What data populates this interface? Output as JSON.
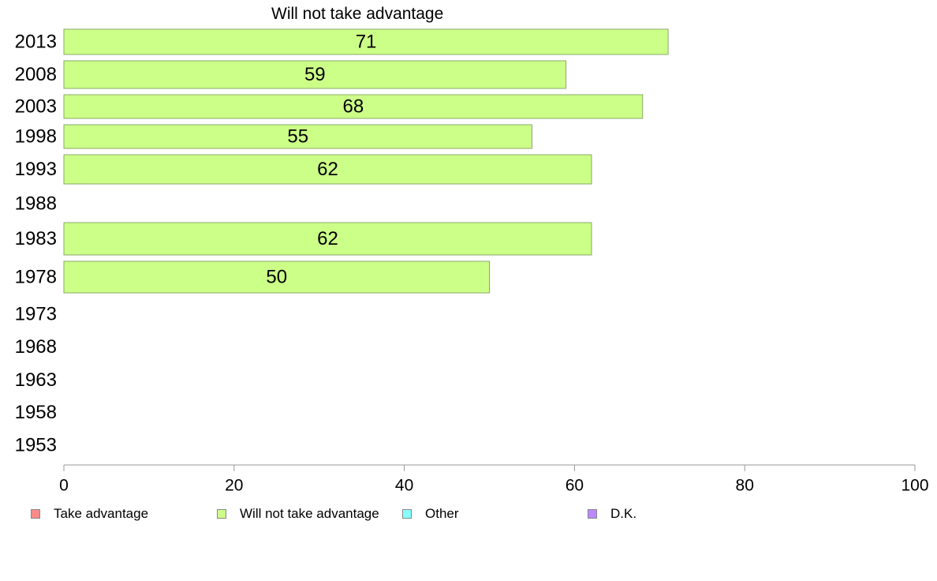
{
  "chart_data": {
    "type": "bar",
    "orientation": "horizontal",
    "title": "Will not take advantage",
    "categories": [
      "2013",
      "2008",
      "2003",
      "1998",
      "1993",
      "1988",
      "1983",
      "1978",
      "1973",
      "1968",
      "1963",
      "1958",
      "1953"
    ],
    "series": [
      {
        "name": "Will not take advantage",
        "values": [
          71,
          59,
          68,
          55,
          62,
          null,
          62,
          50,
          null,
          null,
          null,
          null,
          null
        ],
        "color": "#ccff88"
      }
    ],
    "data_labels": [
      "71",
      "59",
      "68",
      "55",
      "62",
      "",
      "62",
      "50",
      "",
      "",
      "",
      "",
      ""
    ],
    "xlim": [
      0,
      100
    ],
    "xticks": [
      "0",
      "20",
      "40",
      "60",
      "80",
      "100"
    ],
    "xtick_values": [
      0,
      20,
      40,
      60,
      80,
      100
    ],
    "grid": false,
    "legend": {
      "placement": "bottom",
      "items": [
        {
          "label": "Take advantage",
          "color": "#ff8888"
        },
        {
          "label": "Will not take advantage",
          "color": "#ccff88"
        },
        {
          "label": "Other",
          "color": "#88ffff"
        },
        {
          "label": "D.K.",
          "color": "#bb88ff"
        }
      ]
    }
  }
}
